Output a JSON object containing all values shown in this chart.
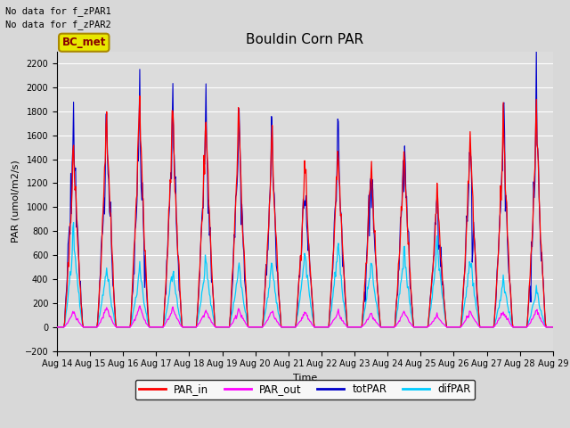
{
  "title": "Bouldin Corn PAR",
  "xlabel": "Time",
  "ylabel": "PAR (umol/m2/s)",
  "ylim": [
    -200,
    2300
  ],
  "yticks": [
    -200,
    0,
    200,
    400,
    600,
    800,
    1000,
    1200,
    1400,
    1600,
    1800,
    2000,
    2200
  ],
  "background_color": "#dcdcdc",
  "legend_items": [
    "PAR_in",
    "PAR_out",
    "totPAR",
    "difPAR"
  ],
  "legend_colors": [
    "#ff0000",
    "#ff00ff",
    "#0000cc",
    "#00ccff"
  ],
  "no_data_text": [
    "No data for f_zPAR1",
    "No data for f_zPAR2"
  ],
  "bc_met_box_facecolor": "#e8e800",
  "bc_met_text_color": "#880000",
  "bc_met_edge_color": "#aa8800",
  "n_days": 15,
  "start_day": 14,
  "end_day": 29,
  "grid_color": "#ffffff",
  "tick_label_size": 7,
  "fig_facecolor": "#d8d8d8"
}
